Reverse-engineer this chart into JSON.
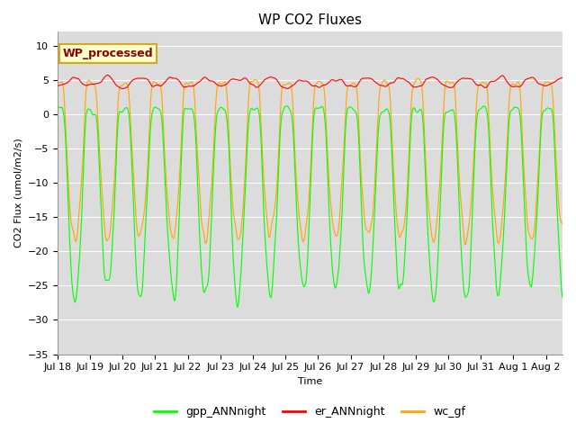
{
  "title": "WP CO2 Fluxes",
  "xlabel": "Time",
  "ylabel_display": "CO2 Flux (umol/m2/s)",
  "ylim": [
    -35,
    12
  ],
  "yticks": [
    -35,
    -30,
    -25,
    -20,
    -15,
    -10,
    -5,
    0,
    5,
    10
  ],
  "n_days": 15.5,
  "gpp_color": "#00FF00",
  "er_color": "#FF0000",
  "wc_color": "#FFA500",
  "bg_color": "#DCDCDC",
  "legend_box_facecolor": "#FFFFCC",
  "legend_text_color": "#8B0000",
  "legend_box_edgecolor": "#DAA520",
  "annotation_text": "WP_processed",
  "linewidth": 0.8,
  "title_fontsize": 11,
  "label_fontsize": 8,
  "tick_fontsize": 8,
  "legend_fontsize": 9,
  "seed": 12345
}
